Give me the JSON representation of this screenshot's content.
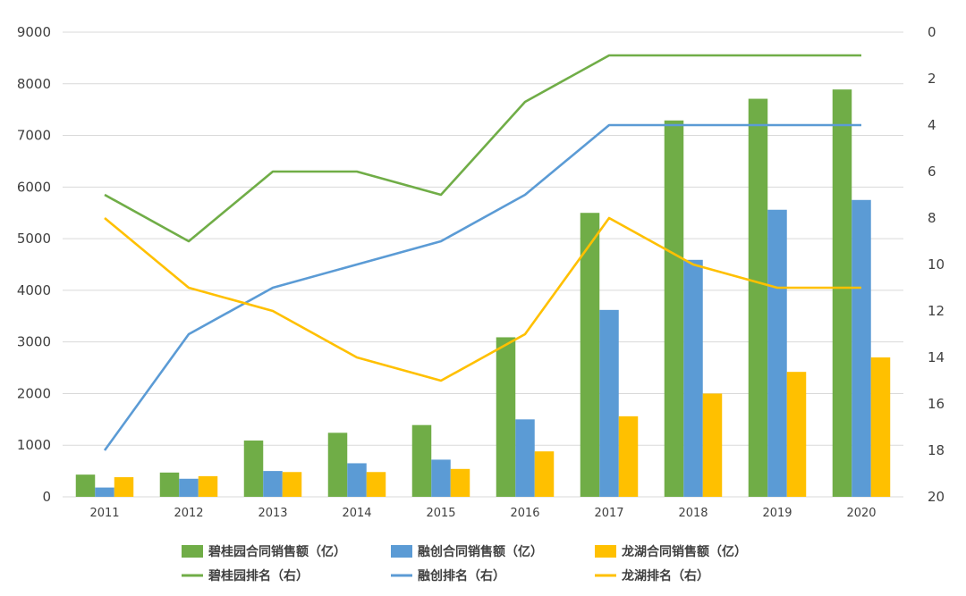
{
  "chart_data": {
    "type": "bar",
    "categories": [
      "2011",
      "2012",
      "2013",
      "2014",
      "2015",
      "2016",
      "2017",
      "2018",
      "2019",
      "2020"
    ],
    "series": [
      {
        "name": "碧桂园合同销售额（亿）",
        "kind": "bar",
        "axis": "left",
        "color": "#70AD47",
        "values": [
          430,
          470,
          1090,
          1240,
          1390,
          3090,
          5500,
          7290,
          7710,
          7890
        ]
      },
      {
        "name": "融创合同销售额（亿）",
        "kind": "bar",
        "axis": "left",
        "color": "#5B9BD5",
        "values": [
          180,
          350,
          500,
          650,
          720,
          1500,
          3620,
          4590,
          5560,
          5750
        ]
      },
      {
        "name": "龙湖合同销售额（亿）",
        "kind": "bar",
        "axis": "left",
        "color": "#FFC000",
        "values": [
          380,
          400,
          480,
          480,
          540,
          880,
          1560,
          2000,
          2420,
          2700
        ]
      },
      {
        "name": "碧桂园排名（右）",
        "kind": "line",
        "axis": "right",
        "color": "#70AD47",
        "values": [
          7,
          9,
          6,
          6,
          7,
          3,
          1,
          1,
          1,
          1
        ]
      },
      {
        "name": "融创排名（右）",
        "kind": "line",
        "axis": "right",
        "color": "#5B9BD5",
        "values": [
          18,
          13,
          11,
          10,
          9,
          7,
          4,
          4,
          4,
          4
        ]
      },
      {
        "name": "龙湖排名（右）",
        "kind": "line",
        "axis": "right",
        "color": "#FFC000",
        "values": [
          8,
          11,
          12,
          14,
          15,
          13,
          8,
          10,
          11,
          11
        ]
      }
    ],
    "y_left": {
      "ylim": [
        0,
        9000
      ],
      "ticks": [
        "0",
        "1000",
        "2000",
        "3000",
        "4000",
        "5000",
        "6000",
        "7000",
        "8000",
        "9000"
      ]
    },
    "y_right": {
      "ylim": [
        0,
        20
      ],
      "inverted": true,
      "ticks": [
        "0",
        "2",
        "4",
        "6",
        "8",
        "10",
        "12",
        "14",
        "16",
        "18",
        "20"
      ]
    },
    "grid": true,
    "legend_position": "bottom"
  }
}
